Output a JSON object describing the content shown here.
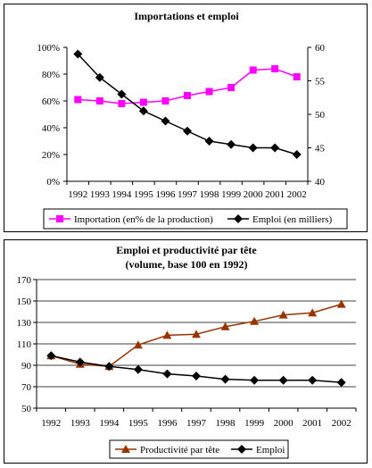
{
  "chart_data": [
    {
      "type": "line",
      "title": "Importations et emploi",
      "categories": [
        "1992",
        "1993",
        "1994",
        "1995",
        "1996",
        "1997",
        "1998",
        "1999",
        "2000",
        "2001",
        "2002"
      ],
      "series": [
        {
          "name": "Importation (en% de la production)",
          "axis": "left",
          "color": "#ff00ff",
          "marker": "square",
          "values": [
            61,
            60,
            58,
            59,
            60,
            64,
            67,
            70,
            83,
            84,
            78
          ]
        },
        {
          "name": "Emploi (en milliers)",
          "axis": "right",
          "color": "#000000",
          "marker": "diamond",
          "values": [
            59,
            55.5,
            53,
            50.5,
            49,
            47.5,
            46,
            45.5,
            45,
            45,
            44
          ]
        }
      ],
      "y_left": {
        "ticks": [
          "0%",
          "20%",
          "40%",
          "60%",
          "80%",
          "100%"
        ],
        "range": [
          0,
          100
        ]
      },
      "y_right": {
        "ticks": [
          "40",
          "45",
          "50",
          "55",
          "60"
        ],
        "range": [
          40,
          60
        ]
      },
      "grid": false,
      "legend_position": "bottom"
    },
    {
      "type": "line",
      "title_lines": [
        "Emploi et productivité par tête",
        "(volume, base 100 en 1992)"
      ],
      "categories": [
        "1992",
        "1993",
        "1994",
        "1995",
        "1996",
        "1997",
        "1998",
        "1999",
        "2000",
        "2001",
        "2002"
      ],
      "series": [
        {
          "name": "Productivité par tête",
          "color": "#993300",
          "marker": "triangle",
          "values": [
            99,
            91,
            89,
            109,
            118,
            119,
            126,
            131,
            137,
            139,
            147
          ]
        },
        {
          "name": "Emploi",
          "color": "#000000",
          "marker": "diamond",
          "values": [
            99,
            93,
            89,
            86,
            82,
            80,
            77,
            76,
            76,
            76,
            74
          ]
        }
      ],
      "y": {
        "ticks": [
          "50",
          "70",
          "90",
          "110",
          "130",
          "150",
          "170"
        ],
        "range": [
          50,
          170
        ]
      },
      "grid": true,
      "legend_position": "bottom"
    }
  ]
}
